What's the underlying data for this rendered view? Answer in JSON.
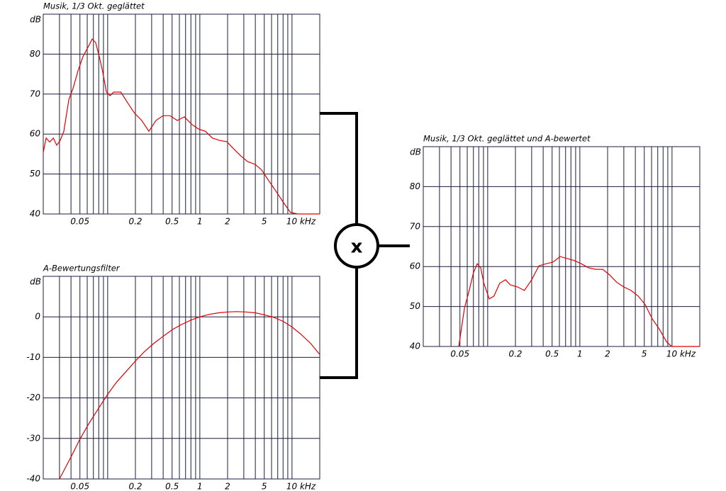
{
  "chart_data": [
    {
      "type": "line",
      "title": "Musik,  1/3 Okt. geglättet",
      "ylabel": "dB",
      "xscale": "log",
      "grid": true,
      "xlim": [
        0.02,
        20
      ],
      "ylim": [
        40,
        90
      ],
      "xticks": [
        0.05,
        0.2,
        0.5,
        1,
        2,
        5,
        {
          "value": 10,
          "label": "10 kHz"
        }
      ],
      "xminor": [
        0.03,
        0.04,
        0.06,
        0.07,
        0.08,
        0.09,
        0.1,
        0.3,
        0.4,
        0.6,
        0.7,
        0.8,
        0.9,
        3,
        4,
        6,
        7,
        8,
        9
      ],
      "yticks": [
        40,
        50,
        60,
        70,
        80
      ],
      "series": [
        {
          "color": "#e00000",
          "x": [
            0.02,
            0.0215,
            0.0235,
            0.0257,
            0.028,
            0.0306,
            0.0334,
            0.038,
            0.0421,
            0.0476,
            0.054,
            0.062,
            0.068,
            0.074,
            0.081,
            0.088,
            0.097,
            0.106,
            0.116,
            0.139,
            0.165,
            0.196,
            0.234,
            0.28,
            0.334,
            0.398,
            0.475,
            0.57,
            0.68,
            0.81,
            0.96,
            1.15,
            1.37,
            1.64,
            1.96,
            2.33,
            2.79,
            3.3,
            4.0,
            4.7,
            5.6,
            6.7,
            8.0,
            9.6,
            11.5,
            20
          ],
          "values": [
            55.4,
            59,
            58,
            59,
            57.2,
            58.4,
            60.7,
            68.7,
            71.4,
            75.8,
            79.4,
            82,
            83.8,
            82.9,
            79.4,
            75.8,
            70.5,
            69.6,
            70.5,
            70.5,
            67.8,
            65.2,
            63.4,
            60.7,
            63.4,
            64.6,
            64.6,
            63.4,
            64.3,
            62.5,
            61.3,
            60.7,
            59,
            58.4,
            58.1,
            56.3,
            54.5,
            53.1,
            52.4,
            51,
            48.3,
            45.7,
            43,
            40.4,
            40,
            40
          ]
        }
      ]
    },
    {
      "type": "line",
      "title": "A-Bewertungsfilter",
      "ylabel": "dB",
      "xscale": "log",
      "grid": true,
      "xlim": [
        0.02,
        20
      ],
      "ylim": [
        -40,
        10
      ],
      "xticks": [
        0.05,
        0.2,
        0.5,
        1,
        2,
        5,
        {
          "value": 10,
          "label": "10 kHz"
        }
      ],
      "xminor": [
        0.03,
        0.04,
        0.06,
        0.07,
        0.08,
        0.09,
        0.1,
        0.3,
        0.4,
        0.6,
        0.7,
        0.8,
        0.9,
        3,
        4,
        6,
        7,
        8,
        9
      ],
      "yticks": [
        -40,
        -30,
        -20,
        -10,
        0
      ],
      "series": [
        {
          "color": "#e00000",
          "x": [
            0.03,
            0.04,
            0.05,
            0.063,
            0.08,
            0.1,
            0.125,
            0.16,
            0.2,
            0.25,
            0.315,
            0.4,
            0.5,
            0.63,
            0.8,
            1,
            1.25,
            1.6,
            2,
            2.5,
            3.15,
            4,
            5,
            6.3,
            8,
            10,
            12.5,
            16,
            20
          ],
          "values": [
            -40,
            -34.6,
            -30.2,
            -26.2,
            -22.5,
            -19.1,
            -16.1,
            -13.4,
            -10.9,
            -8.6,
            -6.6,
            -4.8,
            -3.2,
            -1.9,
            -0.8,
            0,
            0.6,
            1,
            1.2,
            1.3,
            1.2,
            1,
            0.5,
            -0.1,
            -1.1,
            -2.5,
            -4.3,
            -6.6,
            -9.3
          ]
        }
      ]
    },
    {
      "type": "line",
      "title": "Musik,  1/3 Okt. geglättet und A-bewertet",
      "ylabel": "dB",
      "xscale": "log",
      "grid": true,
      "xlim": [
        0.02,
        20
      ],
      "ylim": [
        40,
        90
      ],
      "xticks": [
        0.05,
        0.2,
        0.5,
        1,
        2,
        5,
        {
          "value": 10,
          "label": "10 kHz"
        }
      ],
      "xminor": [
        0.03,
        0.04,
        0.06,
        0.07,
        0.08,
        0.09,
        0.1,
        0.3,
        0.4,
        0.6,
        0.7,
        0.8,
        0.9,
        3,
        4,
        6,
        7,
        8,
        9
      ],
      "yticks": [
        40,
        50,
        60,
        70,
        80
      ],
      "series": [
        {
          "color": "#e00000",
          "x": [
            0.0486,
            0.056,
            0.063,
            0.07,
            0.077,
            0.084,
            0.091,
            0.104,
            0.117,
            0.135,
            0.156,
            0.176,
            0.211,
            0.25,
            0.3,
            0.36,
            0.43,
            0.51,
            0.61,
            0.73,
            0.87,
            1.04,
            1.24,
            1.48,
            1.77,
            2.1,
            2.5,
            3.0,
            3.6,
            4.3,
            5.1,
            6.1,
            7.3,
            8.7,
            9.9,
            20
          ],
          "values": [
            40,
            49.6,
            54,
            58.4,
            60.7,
            59.7,
            55.8,
            51.9,
            52.6,
            55.8,
            56.7,
            55.4,
            54.9,
            54,
            56.7,
            60.2,
            60.7,
            61.1,
            62.5,
            62,
            61.5,
            60.7,
            59.7,
            59.3,
            59.3,
            57.9,
            56.1,
            54.9,
            54,
            52.6,
            50.5,
            46.9,
            44.3,
            41.2,
            40,
            40
          ]
        }
      ]
    }
  ],
  "operator": "x"
}
